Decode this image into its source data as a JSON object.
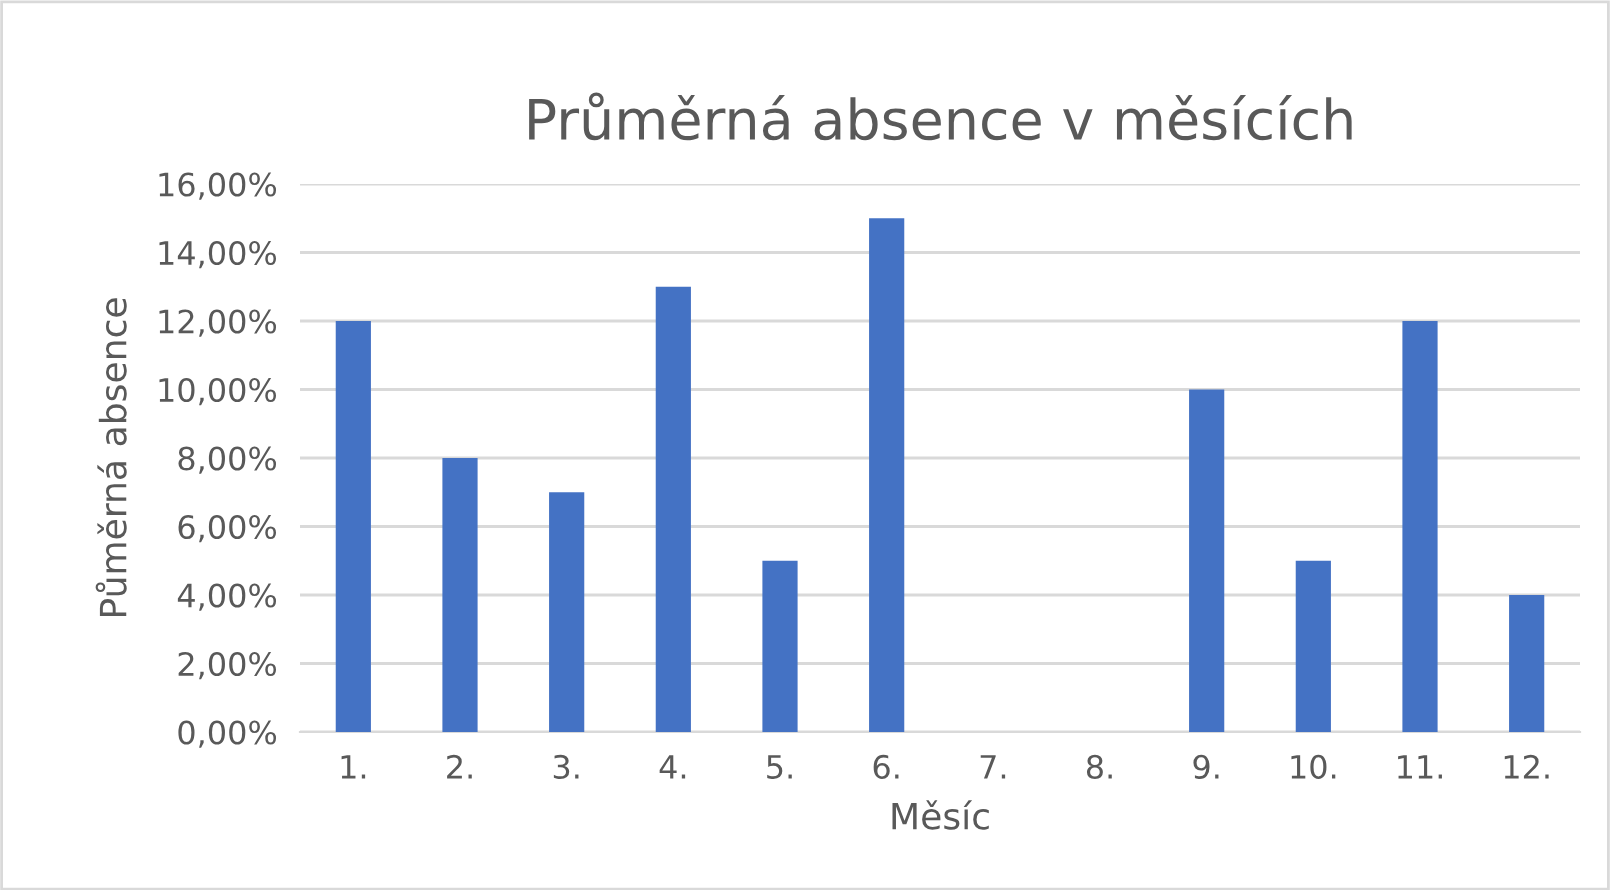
{
  "chart_data": {
    "type": "bar",
    "title": "Průměrná absence v měsících",
    "xlabel": "Měsíc",
    "ylabel": "Půměrná absence",
    "categories": [
      "1.",
      "2.",
      "3.",
      "4.",
      "5.",
      "6.",
      "7.",
      "8.",
      "9.",
      "10.",
      "11.",
      "12."
    ],
    "values": [
      12,
      8,
      7,
      13,
      5,
      15,
      0,
      0,
      10,
      5,
      12,
      4
    ],
    "color": "#4472c4",
    "ylim": [
      0,
      16
    ],
    "yticks": [
      {
        "value": 0,
        "label": "0,00%"
      },
      {
        "value": 2,
        "label": "2,00%"
      },
      {
        "value": 4,
        "label": "4,00%"
      },
      {
        "value": 6,
        "label": "6,00%"
      },
      {
        "value": 8,
        "label": "8,00%"
      },
      {
        "value": 10,
        "label": "10,00%"
      },
      {
        "value": 12,
        "label": "12,00%"
      },
      {
        "value": 14,
        "label": "14,00%"
      },
      {
        "value": 16,
        "label": "16,00%"
      }
    ],
    "grid": "y",
    "legend": false
  }
}
